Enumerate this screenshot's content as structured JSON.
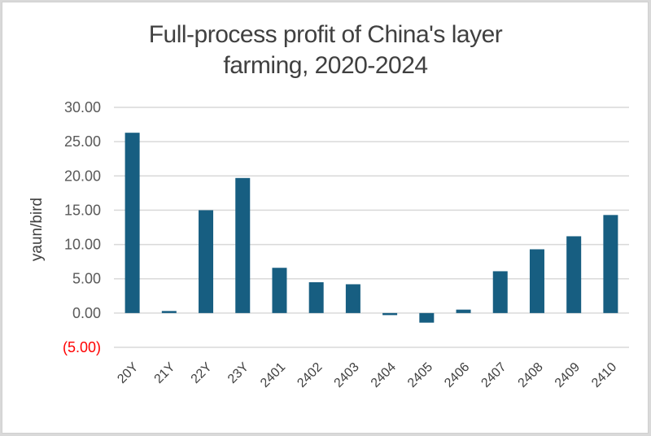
{
  "chart_data": {
    "type": "bar",
    "title": "Full-process profit of China's layer farming, 2020-2024",
    "title_lines": [
      "Full-process profit of China's layer",
      "farming, 2020-2024"
    ],
    "xlabel": "",
    "ylabel": "yaun/bird",
    "categories": [
      "20Y",
      "21Y",
      "22Y",
      "23Y",
      "2401",
      "2402",
      "2403",
      "2404",
      "2405",
      "2406",
      "2407",
      "2408",
      "2409",
      "2410"
    ],
    "values": [
      26.3,
      0.3,
      15.0,
      19.7,
      6.6,
      4.5,
      4.2,
      -0.3,
      -1.4,
      0.5,
      6.1,
      9.3,
      11.2,
      14.3
    ],
    "ylim": [
      -5,
      30
    ],
    "yticks": [
      30,
      25,
      20,
      15,
      10,
      5,
      0,
      -5
    ],
    "ytick_labels": [
      "30.00",
      "25.00",
      "20.00",
      "15.00",
      "10.00",
      "5.00",
      "0.00",
      "(5.00)"
    ],
    "negative_tick_color": "#ff0000",
    "bar_color": "#175e81",
    "grid": true,
    "legend": "none"
  }
}
